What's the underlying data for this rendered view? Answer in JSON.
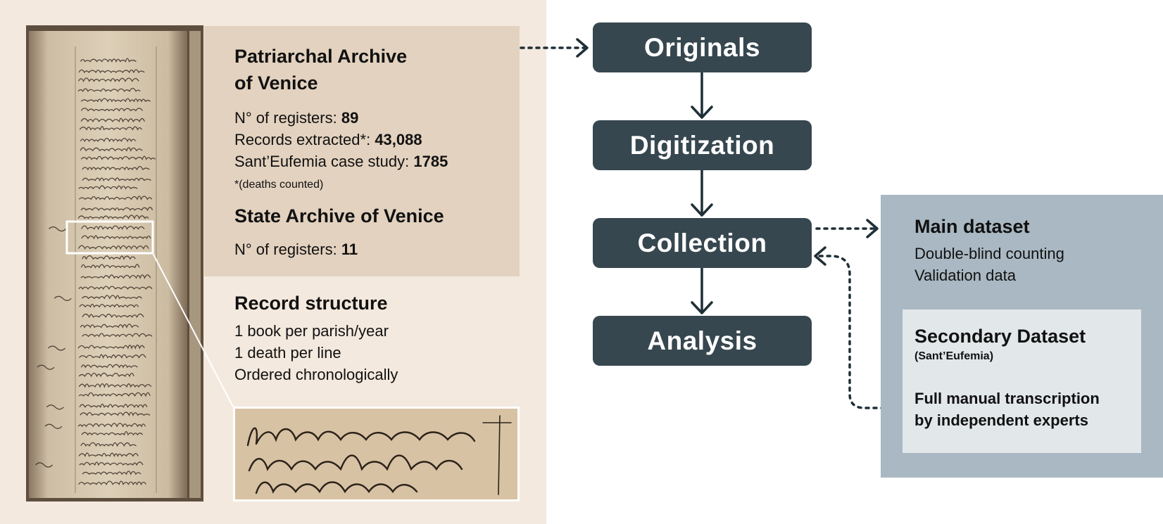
{
  "archives": {
    "patriarchal": {
      "title_line1": "Patriarchal Archive",
      "title_line2": "of Venice",
      "registers_label": "N° of registers: ",
      "registers_value": "89",
      "records_label": "Records extracted*: ",
      "records_value": "43,088",
      "case_label": "Sant’Eufemia case study: ",
      "case_value": "1785",
      "footnote": "*(deaths counted)"
    },
    "state": {
      "title": "State Archive of Venice",
      "registers_label": "N° of registers: ",
      "registers_value": "11"
    }
  },
  "record_structure": {
    "title": "Record structure",
    "lines": [
      "1 book per parish/year",
      "1 death per line",
      "Ordered chronologically"
    ]
  },
  "pipeline": {
    "steps": [
      "Originals",
      "Digitization",
      "Collection",
      "Analysis"
    ]
  },
  "datasets": {
    "main": {
      "title": "Main dataset",
      "lines": [
        "Double-blind counting",
        "Validation data"
      ]
    },
    "secondary": {
      "title": "Secondary Dataset",
      "subtitle": "(Sant’Eufemia)",
      "lines": [
        "Full manual transcription",
        "by independent experts"
      ]
    }
  },
  "colors": {
    "left_panel_bg": "#f4e9de",
    "archive_box_bg": "#e3d2bf",
    "flow_box_bg": "#37474f",
    "main_dataset_bg": "#a9b8c2",
    "secondary_dataset_bg": "#e2e7ea",
    "arrow": "#1f2f36"
  }
}
